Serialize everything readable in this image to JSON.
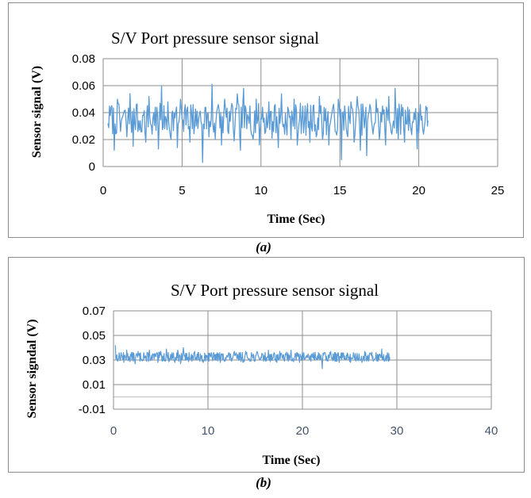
{
  "chart_data": [
    {
      "type": "line",
      "panel": "(a)",
      "title": "S/V  Port pressure sensor signal",
      "xlabel": "Time (Sec)",
      "ylabel": "Sensor signal (V)",
      "xlim": [
        0,
        25
      ],
      "ylim": [
        0,
        0.08
      ],
      "xticks": [
        "0",
        "5",
        "10",
        "15",
        "20",
        "25"
      ],
      "yticks": [
        "0",
        "0.02",
        "0.04",
        "0.06",
        "0.08"
      ],
      "grid": "vertical and horizontal",
      "series_color": "#5b9bd5",
      "series": [
        {
          "x_range": [
            0.3,
            20.6
          ],
          "mean": 0.034,
          "min": 0.002,
          "max": 0.061,
          "typical_band": [
            0.018,
            0.052
          ],
          "samples": [
            [
              0.3,
              0.032
            ],
            [
              0.5,
              0.044
            ],
            [
              0.7,
              0.012
            ],
            [
              0.9,
              0.05
            ],
            [
              1.1,
              0.026
            ],
            [
              1.3,
              0.04
            ],
            [
              1.5,
              0.022
            ],
            [
              1.7,
              0.054
            ],
            [
              1.9,
              0.015
            ],
            [
              2.1,
              0.046
            ],
            [
              2.3,
              0.027
            ],
            [
              2.5,
              0.038
            ],
            [
              2.7,
              0.018
            ],
            [
              2.9,
              0.052
            ],
            [
              3.1,
              0.024
            ],
            [
              3.3,
              0.044
            ],
            [
              3.5,
              0.013
            ],
            [
              3.7,
              0.06
            ],
            [
              3.9,
              0.028
            ],
            [
              4.1,
              0.048
            ],
            [
              4.3,
              0.02
            ],
            [
              4.5,
              0.04
            ],
            [
              4.7,
              0.014
            ],
            [
              4.9,
              0.05
            ],
            [
              5.1,
              0.026
            ],
            [
              5.3,
              0.042
            ],
            [
              5.5,
              0.018
            ],
            [
              5.7,
              0.046
            ],
            [
              5.9,
              0.03
            ],
            [
              6.1,
              0.039
            ],
            [
              6.3,
              0.003
            ],
            [
              6.5,
              0.044
            ],
            [
              6.7,
              0.022
            ],
            [
              6.9,
              0.061
            ],
            [
              7.1,
              0.02
            ],
            [
              7.3,
              0.046
            ],
            [
              7.5,
              0.016
            ],
            [
              7.7,
              0.05
            ],
            [
              7.9,
              0.026
            ],
            [
              8.1,
              0.042
            ],
            [
              8.3,
              0.019
            ],
            [
              8.5,
              0.054
            ],
            [
              8.7,
              0.012
            ],
            [
              8.9,
              0.058
            ],
            [
              9.1,
              0.028
            ],
            [
              9.3,
              0.045
            ],
            [
              9.5,
              0.02
            ],
            [
              9.7,
              0.05
            ],
            [
              9.9,
              0.016
            ],
            [
              10.1,
              0.044
            ],
            [
              10.3,
              0.026
            ],
            [
              10.5,
              0.048
            ],
            [
              10.7,
              0.021
            ],
            [
              10.9,
              0.046
            ],
            [
              11.1,
              0.014
            ],
            [
              11.3,
              0.054
            ],
            [
              11.5,
              0.024
            ],
            [
              11.7,
              0.044
            ],
            [
              11.9,
              0.02
            ],
            [
              12.1,
              0.05
            ],
            [
              12.3,
              0.016
            ],
            [
              12.5,
              0.047
            ],
            [
              12.7,
              0.025
            ],
            [
              12.9,
              0.04
            ],
            [
              13.1,
              0.018
            ],
            [
              13.3,
              0.045
            ],
            [
              13.5,
              0.022
            ],
            [
              13.7,
              0.052
            ],
            [
              13.9,
              0.02
            ],
            [
              14.1,
              0.043
            ],
            [
              14.3,
              0.016
            ],
            [
              14.5,
              0.04
            ],
            [
              14.7,
              0.026
            ],
            [
              14.9,
              0.05
            ],
            [
              15.1,
              0.005
            ],
            [
              15.3,
              0.045
            ],
            [
              15.5,
              0.022
            ],
            [
              15.7,
              0.048
            ],
            [
              15.9,
              0.018
            ],
            [
              16.1,
              0.052
            ],
            [
              16.3,
              0.012
            ],
            [
              16.5,
              0.04
            ],
            [
              16.7,
              0.008
            ],
            [
              16.9,
              0.046
            ],
            [
              17.1,
              0.024
            ],
            [
              17.3,
              0.05
            ],
            [
              17.5,
              0.02
            ],
            [
              17.7,
              0.045
            ],
            [
              17.9,
              0.016
            ],
            [
              18.1,
              0.052
            ],
            [
              18.3,
              0.024
            ],
            [
              18.5,
              0.058
            ],
            [
              18.7,
              0.02
            ],
            [
              18.9,
              0.046
            ],
            [
              19.1,
              0.018
            ],
            [
              19.3,
              0.044
            ],
            [
              19.5,
              0.028
            ],
            [
              19.7,
              0.04
            ],
            [
              19.9,
              0.013
            ],
            [
              20.1,
              0.046
            ],
            [
              20.3,
              0.024
            ],
            [
              20.5,
              0.042
            ],
            [
              20.6,
              0.034
            ]
          ]
        }
      ]
    },
    {
      "type": "line",
      "panel": "(b)",
      "title": "S/V Port pressure sensor signal",
      "xlabel": "Time (Sec)",
      "ylabel": "Sensor signdal (V)",
      "xlim": [
        0,
        40
      ],
      "ylim": [
        -0.01,
        0.07
      ],
      "xticks": [
        "0",
        "10",
        "20",
        "30",
        "40"
      ],
      "yticks": [
        "-0.01",
        "0.01",
        "0.03",
        "0.05",
        "0.07"
      ],
      "grid": "vertical and horizontal",
      "series_color": "#5b9bd5",
      "series": [
        {
          "x_range": [
            0.2,
            29.3
          ],
          "mean": 0.032,
          "min": 0.023,
          "max": 0.042,
          "typical_band": [
            0.027,
            0.038
          ],
          "samples": [
            [
              0.2,
              0.042
            ],
            [
              0.5,
              0.031
            ],
            [
              0.8,
              0.036
            ],
            [
              1.1,
              0.028
            ],
            [
              1.4,
              0.038
            ],
            [
              1.7,
              0.03
            ],
            [
              2.0,
              0.035
            ],
            [
              2.3,
              0.027
            ],
            [
              2.6,
              0.037
            ],
            [
              2.9,
              0.031
            ],
            [
              3.2,
              0.036
            ],
            [
              3.5,
              0.029
            ],
            [
              3.8,
              0.038
            ],
            [
              4.1,
              0.03
            ],
            [
              4.4,
              0.035
            ],
            [
              4.7,
              0.028
            ],
            [
              5.0,
              0.037
            ],
            [
              5.3,
              0.031
            ],
            [
              5.6,
              0.039
            ],
            [
              5.9,
              0.029
            ],
            [
              6.2,
              0.036
            ],
            [
              6.5,
              0.028
            ],
            [
              6.8,
              0.038
            ],
            [
              7.1,
              0.027
            ],
            [
              7.4,
              0.04
            ],
            [
              7.7,
              0.03
            ],
            [
              8.0,
              0.036
            ],
            [
              8.3,
              0.029
            ],
            [
              8.6,
              0.037
            ],
            [
              8.9,
              0.03
            ],
            [
              9.2,
              0.035
            ],
            [
              9.5,
              0.028
            ],
            [
              9.8,
              0.034
            ],
            [
              10.1,
              0.029
            ],
            [
              10.4,
              0.035
            ],
            [
              10.7,
              0.03
            ],
            [
              11.0,
              0.036
            ],
            [
              11.3,
              0.028
            ],
            [
              11.6,
              0.035
            ],
            [
              11.9,
              0.03
            ],
            [
              12.2,
              0.036
            ],
            [
              12.5,
              0.029
            ],
            [
              12.8,
              0.037
            ],
            [
              13.1,
              0.031
            ],
            [
              13.4,
              0.035
            ],
            [
              13.7,
              0.028
            ],
            [
              14.0,
              0.037
            ],
            [
              14.3,
              0.03
            ],
            [
              14.6,
              0.036
            ],
            [
              14.9,
              0.029
            ],
            [
              15.2,
              0.037
            ],
            [
              15.5,
              0.031
            ],
            [
              15.8,
              0.035
            ],
            [
              16.1,
              0.029
            ],
            [
              16.4,
              0.038
            ],
            [
              16.7,
              0.03
            ],
            [
              17.0,
              0.036
            ],
            [
              17.3,
              0.028
            ],
            [
              17.6,
              0.037
            ],
            [
              17.9,
              0.031
            ],
            [
              18.2,
              0.035
            ],
            [
              18.5,
              0.029
            ],
            [
              18.8,
              0.038
            ],
            [
              19.1,
              0.03
            ],
            [
              19.4,
              0.036
            ],
            [
              19.7,
              0.028
            ],
            [
              20.0,
              0.037
            ],
            [
              20.3,
              0.031
            ],
            [
              20.6,
              0.035
            ],
            [
              20.9,
              0.029
            ],
            [
              21.2,
              0.036
            ],
            [
              21.5,
              0.03
            ],
            [
              21.8,
              0.035
            ],
            [
              22.1,
              0.023
            ],
            [
              22.4,
              0.036
            ],
            [
              22.7,
              0.029
            ],
            [
              23.0,
              0.037
            ],
            [
              23.3,
              0.03
            ],
            [
              23.6,
              0.035
            ],
            [
              23.9,
              0.028
            ],
            [
              24.2,
              0.036
            ],
            [
              24.5,
              0.03
            ],
            [
              24.8,
              0.035
            ],
            [
              25.1,
              0.028
            ],
            [
              25.4,
              0.036
            ],
            [
              25.7,
              0.03
            ],
            [
              26.0,
              0.035
            ],
            [
              26.3,
              0.028
            ],
            [
              26.6,
              0.037
            ],
            [
              26.9,
              0.03
            ],
            [
              27.2,
              0.035
            ],
            [
              27.5,
              0.029
            ],
            [
              27.8,
              0.036
            ],
            [
              28.1,
              0.03
            ],
            [
              28.4,
              0.039
            ],
            [
              28.7,
              0.029
            ],
            [
              29.0,
              0.036
            ],
            [
              29.3,
              0.032
            ]
          ]
        }
      ]
    }
  ],
  "captions": {
    "a": "(a)",
    "b": "(b)"
  }
}
